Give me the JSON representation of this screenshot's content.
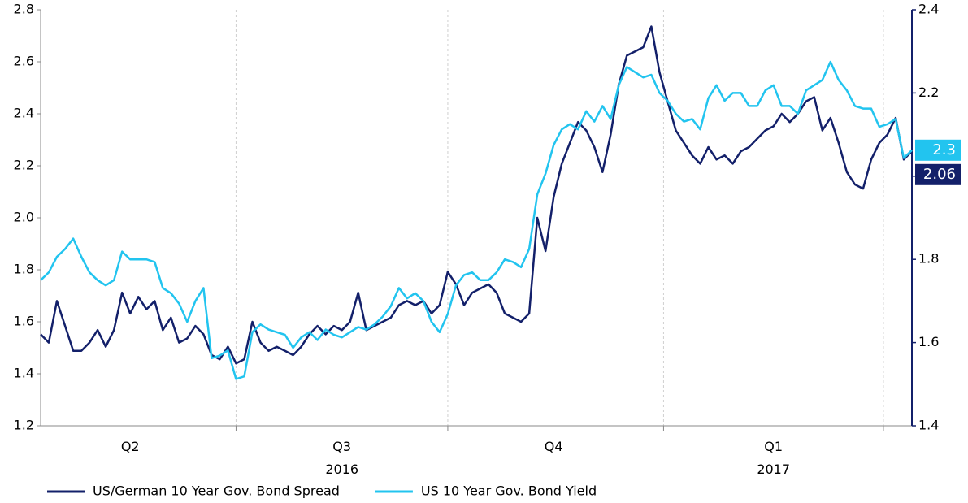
{
  "chart_data": {
    "type": "line",
    "categories": [
      null,
      null,
      null,
      null,
      null,
      null,
      null,
      null,
      null,
      null,
      null,
      "Q2",
      null,
      null,
      null,
      null,
      null,
      null,
      null,
      null,
      null,
      null,
      null,
      null,
      null,
      null,
      null,
      null,
      null,
      null,
      null,
      null,
      null,
      null,
      null,
      null,
      null,
      "Q3\n2016",
      null,
      null,
      null,
      null,
      null,
      null,
      null,
      null,
      null,
      null,
      null,
      null,
      null,
      null,
      null,
      null,
      null,
      null,
      null,
      null,
      null,
      null,
      null,
      null,
      null,
      "Q4",
      null,
      null,
      null,
      null,
      null,
      null,
      null,
      null,
      null,
      null,
      null,
      null,
      null,
      null,
      null,
      null,
      null,
      null,
      null,
      null,
      null,
      null,
      null,
      null,
      null,
      null,
      "Q1\n2017",
      null,
      null,
      null,
      null,
      null,
      null,
      null,
      null,
      null,
      null,
      null,
      null,
      null,
      null,
      null,
      null,
      null
    ],
    "series": [
      {
        "name": "US/German 10 Year Gov. Bond Spread",
        "color": "#13206a",
        "axis": "y2",
        "end_label": "2.06",
        "values": [
          1.62,
          1.6,
          1.7,
          1.64,
          1.58,
          1.58,
          1.6,
          1.63,
          1.59,
          1.63,
          1.72,
          1.67,
          1.71,
          1.68,
          1.7,
          1.63,
          1.66,
          1.6,
          1.61,
          1.64,
          1.62,
          1.57,
          1.56,
          1.59,
          1.55,
          1.56,
          1.65,
          1.6,
          1.58,
          1.59,
          1.58,
          1.57,
          1.59,
          1.62,
          1.64,
          1.62,
          1.64,
          1.63,
          1.65,
          1.72,
          1.63,
          1.64,
          1.65,
          1.66,
          1.69,
          1.7,
          1.69,
          1.7,
          1.67,
          1.69,
          1.77,
          1.74,
          1.69,
          1.72,
          1.73,
          1.74,
          1.72,
          1.67,
          1.66,
          1.65,
          1.67,
          1.9,
          1.82,
          1.95,
          2.03,
          2.08,
          2.13,
          2.11,
          2.07,
          2.01,
          2.1,
          2.22,
          2.29,
          2.3,
          2.31,
          2.36,
          2.25,
          2.18,
          2.11,
          2.08,
          2.05,
          2.03,
          2.07,
          2.04,
          2.05,
          2.03,
          2.06,
          2.07,
          2.09,
          2.11,
          2.12,
          2.15,
          2.13,
          2.15,
          2.18,
          2.19,
          2.11,
          2.14,
          2.08,
          2.01,
          1.98,
          1.97,
          2.04,
          2.08,
          2.1,
          2.14,
          2.04,
          2.06
        ]
      },
      {
        "name": "US 10 Year Gov. Bond Yield",
        "color": "#22c4ef",
        "axis": "y",
        "end_label": "2.3",
        "values": [
          1.76,
          1.79,
          1.85,
          1.88,
          1.92,
          1.85,
          1.79,
          1.76,
          1.74,
          1.76,
          1.87,
          1.84,
          1.84,
          1.84,
          1.83,
          1.73,
          1.71,
          1.67,
          1.6,
          1.68,
          1.73,
          1.46,
          1.47,
          1.49,
          1.38,
          1.39,
          1.56,
          1.59,
          1.57,
          1.56,
          1.55,
          1.5,
          1.54,
          1.56,
          1.53,
          1.57,
          1.55,
          1.54,
          1.56,
          1.58,
          1.57,
          1.59,
          1.62,
          1.66,
          1.73,
          1.69,
          1.71,
          1.68,
          1.6,
          1.56,
          1.63,
          1.74,
          1.78,
          1.79,
          1.76,
          1.76,
          1.79,
          1.84,
          1.83,
          1.81,
          1.88,
          2.09,
          2.17,
          2.28,
          2.34,
          2.36,
          2.34,
          2.41,
          2.37,
          2.43,
          2.38,
          2.51,
          2.58,
          2.56,
          2.54,
          2.55,
          2.48,
          2.45,
          2.4,
          2.37,
          2.38,
          2.34,
          2.46,
          2.51,
          2.45,
          2.48,
          2.48,
          2.43,
          2.43,
          2.49,
          2.51,
          2.43,
          2.43,
          2.4,
          2.49,
          2.51,
          2.53,
          2.6,
          2.53,
          2.49,
          2.43,
          2.42,
          2.42,
          2.35,
          2.36,
          2.38,
          2.23,
          2.26
        ]
      }
    ],
    "ylim": [
      1.2,
      2.8
    ],
    "yticks": [
      1.2,
      1.4,
      1.6,
      1.8,
      {
        "value": 2,
        "label": "2.0"
      },
      2.2,
      2.4,
      2.6,
      2.8
    ],
    "y2lim": [
      1.4,
      2.4
    ],
    "y2ticks": [
      1.4,
      1.6,
      1.8,
      {
        "value": 2,
        "label": "2.0"
      },
      2.2,
      2.4
    ],
    "legend": "bottom"
  }
}
